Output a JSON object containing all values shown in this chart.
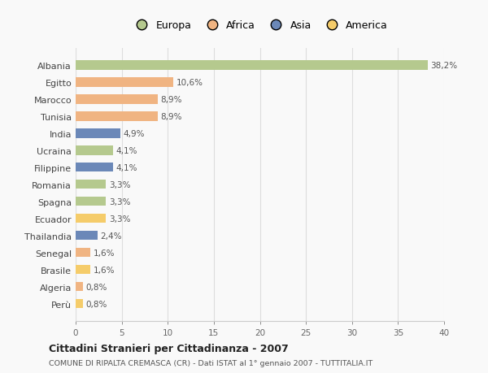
{
  "countries": [
    "Albania",
    "Egitto",
    "Marocco",
    "Tunisia",
    "India",
    "Ucraina",
    "Filippine",
    "Romania",
    "Spagna",
    "Ecuador",
    "Thailandia",
    "Senegal",
    "Brasile",
    "Algeria",
    "Perù"
  ],
  "values": [
    38.2,
    10.6,
    8.9,
    8.9,
    4.9,
    4.1,
    4.1,
    3.3,
    3.3,
    3.3,
    2.4,
    1.6,
    1.6,
    0.8,
    0.8
  ],
  "labels": [
    "38,2%",
    "10,6%",
    "8,9%",
    "8,9%",
    "4,9%",
    "4,1%",
    "4,1%",
    "3,3%",
    "3,3%",
    "3,3%",
    "2,4%",
    "1,6%",
    "1,6%",
    "0,8%",
    "0,8%"
  ],
  "colors": [
    "#b5c98e",
    "#f0b482",
    "#f0b482",
    "#f0b482",
    "#6b88b8",
    "#b5c98e",
    "#6b88b8",
    "#b5c98e",
    "#b5c98e",
    "#f5cc6a",
    "#6b88b8",
    "#f0b482",
    "#f5cc6a",
    "#f0b482",
    "#f5cc6a"
  ],
  "legend_labels": [
    "Europa",
    "Africa",
    "Asia",
    "America"
  ],
  "legend_colors": [
    "#b5c98e",
    "#f0b482",
    "#6b88b8",
    "#f5cc6a"
  ],
  "title": "Cittadini Stranieri per Cittadinanza - 2007",
  "subtitle": "COMUNE DI RIPALTA CREMASCA (CR) - Dati ISTAT al 1° gennaio 2007 - TUTTITALIA.IT",
  "xlim": [
    0,
    40
  ],
  "xticks": [
    0,
    5,
    10,
    15,
    20,
    25,
    30,
    35,
    40
  ],
  "background_color": "#f9f9f9",
  "grid_color": "#dddddd"
}
